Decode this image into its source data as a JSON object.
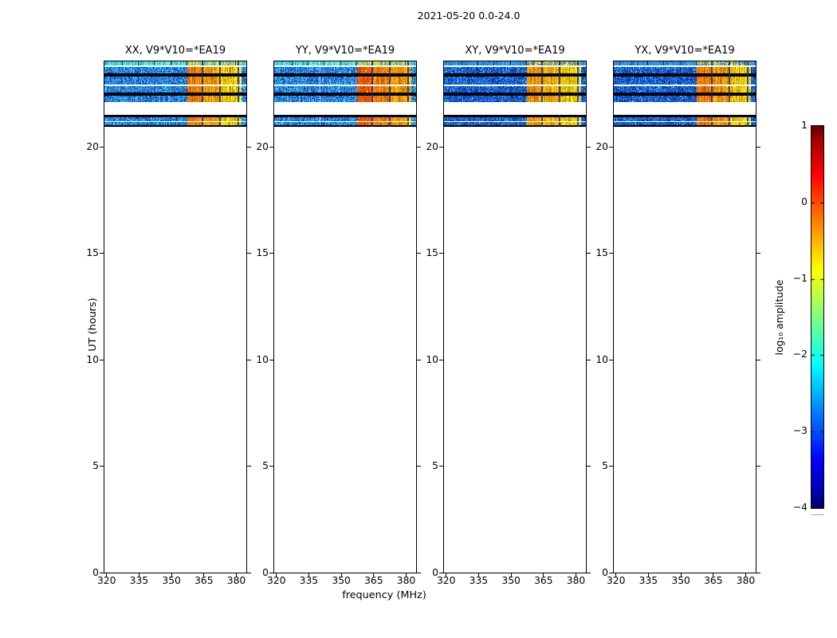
{
  "figure": {
    "suptitle": "2021-05-20 0.0-24.0",
    "xlabel": "frequency (MHz)",
    "ylabel": "UT (hours)"
  },
  "chart_data": {
    "type": "heatmap",
    "title": "2021-05-20 0.0-24.0",
    "xlabel": "frequency (MHz)",
    "ylabel": "UT (hours)",
    "x_axis_mhz": {
      "min": 319.0,
      "max": 384.6
    },
    "x_ticks": [
      320,
      335,
      350,
      365,
      380
    ],
    "x_tick_labels": [
      "320",
      "335",
      "350",
      "365",
      "380"
    ],
    "y_axis_hours": {
      "min": 0,
      "max": 24
    },
    "y_ticks": [
      0,
      5,
      10,
      15,
      20
    ],
    "y_tick_labels": [
      "0",
      "5",
      "10",
      "15",
      "20"
    ],
    "colorbar": {
      "label": "log₁₀ amplitude",
      "colormap": "jet",
      "value_min": -4,
      "value_max": 1,
      "ticks": [
        1,
        0,
        -1,
        -2,
        -3,
        -4
      ],
      "tick_labels": [
        "1",
        "0",
        "−1",
        "−2",
        "−3",
        "−4"
      ]
    },
    "panels": [
      {
        "pol": "XX",
        "title": "XX, V9*V10=*EA19",
        "style": "bright",
        "seed": 101,
        "speckle_colors": [
          "#1a55d8",
          "#2470e2",
          "#2f9bea",
          "#3cc3ea",
          "#1340c0",
          "#28b0ec"
        ],
        "edge_color": "#4bcfe2",
        "edge_color2": "#5cd8cf",
        "rfi_block_colors": [
          "#f97b00",
          "#fb9e00",
          "#eed000",
          "#d8e040"
        ],
        "hot_color": "#f04800"
      },
      {
        "pol": "YY",
        "title": "YY, V9*V10=*EA19",
        "style": "bright",
        "seed": 202,
        "speckle_colors": [
          "#1a55d8",
          "#2470e2",
          "#2f9bea",
          "#3cc3ea",
          "#1340c0",
          "#28b0ec"
        ],
        "edge_color": "#4bcfe2",
        "edge_color2": "#5cd8cf",
        "light_column_mhz": 340,
        "rfi_block_colors": [
          "#f85200",
          "#f97c00",
          "#fb9c00",
          "#f9b800"
        ],
        "hot_color": "#e83000"
      },
      {
        "pol": "XY",
        "title": "XY, V9*V10=*EA19",
        "style": "dark",
        "seed": 303,
        "speckle_colors": [
          "#0c38c0",
          "#1450cc",
          "#1a64d8",
          "#2383e2",
          "#0a2ca4",
          "#2aa2e8"
        ],
        "edge_color": "#2e8ae4",
        "edge_color2": "#2e8ae4",
        "rfi_block_colors": [
          "#fb9200",
          "#fbae00",
          "#f0d000",
          "#d4e054"
        ],
        "hot_color": "#f05800"
      },
      {
        "pol": "YX",
        "title": "YX, V9*V10=*EA19",
        "style": "dark",
        "seed": 404,
        "speckle_colors": [
          "#0c38c0",
          "#1450cc",
          "#1a64d8",
          "#2383e2",
          "#0a2ca4",
          "#2aa2e8"
        ],
        "edge_color": "#2e8ae4",
        "edge_color2": "#2e8ae4",
        "rfi_block_colors": [
          "#f97200",
          "#fb9600",
          "#f4c800",
          "#dede44"
        ],
        "hot_color": "#f04000"
      }
    ],
    "time_bands": [
      {
        "ut": [
          23.81,
          24.0
        ],
        "kind": "edge"
      },
      {
        "ut": [
          23.44,
          23.74
        ],
        "kind": "data"
      },
      {
        "ut": [
          23.29,
          23.44
        ],
        "kind": "flagged"
      },
      {
        "ut": [
          22.92,
          23.29
        ],
        "kind": "data"
      },
      {
        "ut": [
          22.54,
          22.84
        ],
        "kind": "data"
      },
      {
        "ut": [
          22.39,
          22.54
        ],
        "kind": "flagged"
      },
      {
        "ut": [
          22.09,
          22.39
        ],
        "kind": "data"
      },
      {
        "ut": [
          21.38,
          21.49
        ],
        "kind": "flagged"
      },
      {
        "ut": [
          21.19,
          21.38
        ],
        "kind": "data"
      },
      {
        "ut": [
          21.0,
          21.15
        ],
        "kind": "data"
      },
      {
        "ut": [
          20.93,
          21.0
        ],
        "kind": "flagged"
      }
    ],
    "rfi_band_mhz": [
      357.5,
      382.3
    ],
    "rfi_separators_mhz": [
      364.2,
      372.4,
      381.0
    ],
    "rfi_sub_separators_mhz": [
      360.8,
      368.3,
      376.7
    ],
    "quiet_column_ticks_mhz": [
      327.0,
      334.5,
      342.0,
      349.5
    ],
    "edge_rfi_colors": [
      "#ffd800",
      "#f2c400",
      "#ffe760",
      "#48c4d4"
    ],
    "observation_note": "Signal present only near UT 21.0–21.4 and UT 22.1–24.0; remainder of the 0–24 h range is blank"
  }
}
